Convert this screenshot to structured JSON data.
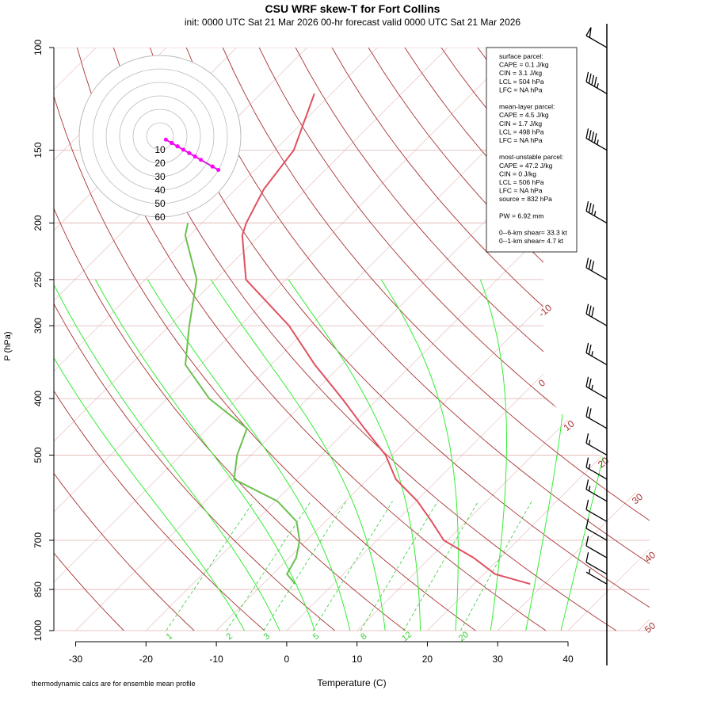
{
  "chart_data": {
    "type": "skewt",
    "title": "CSU WRF skew-T for Fort Collins",
    "subtitle": "init: 0000 UTC Sat 21 Mar 2026     00-hr forecast valid 0000 UTC Sat 21 Mar 2026",
    "x_label": "Temperature (C)",
    "y_label": "P (hPa)",
    "xlim": [
      -33.1,
      51.6
    ],
    "ylim": [
      1000,
      100
    ],
    "log_y": true,
    "xticks": [
      -30,
      -20,
      -10,
      0,
      10,
      20,
      30,
      40
    ],
    "yticks": [
      100,
      150,
      200,
      250,
      300,
      400,
      500,
      700,
      850,
      1000
    ],
    "isotherm_labels": [
      -10,
      0,
      10,
      20,
      30,
      40,
      50
    ],
    "mixing_ratio_labels": [
      1,
      2,
      3,
      5,
      8,
      12,
      20
    ],
    "hodograph_rings": [
      10,
      20,
      30,
      40,
      50,
      60
    ],
    "pressure": [
      832,
      800,
      750,
      700,
      650,
      600,
      550,
      500,
      450,
      400,
      350,
      300,
      250,
      210,
      200,
      175,
      150,
      120
    ],
    "temperature": [
      28,
      21.6,
      16.2,
      9.5,
      5.1,
      0.2,
      -6.0,
      -10.9,
      -17.7,
      -25.1,
      -33.8,
      -43,
      -55.7,
      -62.5,
      -63.7,
      -66,
      -67.3,
      -72.4
    ],
    "dewpoint": [
      -5.4,
      -8,
      -9,
      -11,
      -14.1,
      -19.7,
      -29,
      -32,
      -34.4,
      -44,
      -52.2,
      -57.2,
      -62.7,
      -70.6,
      -72,
      null,
      null,
      null
    ],
    "temperature_color": "#e05060",
    "dewpoint_color": "#6cc050",
    "wind_pressure": [
      832,
      800,
      750,
      700,
      650,
      600,
      550,
      500,
      450,
      400,
      350,
      300,
      250,
      200,
      150,
      120,
      100
    ],
    "wind_speed": [
      5,
      10,
      10,
      10,
      10,
      15,
      15,
      15,
      20,
      25,
      25,
      30,
      30,
      35,
      45,
      45,
      50
    ],
    "wind_direction": [
      300,
      300,
      300,
      300,
      300,
      300,
      300,
      300,
      300,
      300,
      300,
      300,
      300,
      300,
      300,
      300,
      300
    ],
    "info_box": [
      [
        "surface parcel:",
        "CAPE = 0.1 J/kg",
        "CIN = 3.1 J/kg",
        "LCL = 504 hPa",
        "LFC = NA hPa"
      ],
      [
        "mean-layer parcel:",
        "CAPE = 4.5 J/kg",
        "CIN = 1.7 J/kg",
        "LCL = 498 hPa",
        "LFC = NA hPa"
      ],
      [
        "most-unstable parcel:",
        "CAPE = 47.2 J/kg",
        "CIN = 0 J/kg",
        "LCL = 506 hPa",
        "LFC = NA hPa",
        "source = 832 hPa"
      ],
      [
        "PW =  6.92 mm"
      ],
      [
        "0--6-km shear= 33.3 kt",
        "0--1-km shear= 4.7 kt"
      ]
    ],
    "footnote": "thermodynamic calcs are for ensemble mean profile"
  }
}
